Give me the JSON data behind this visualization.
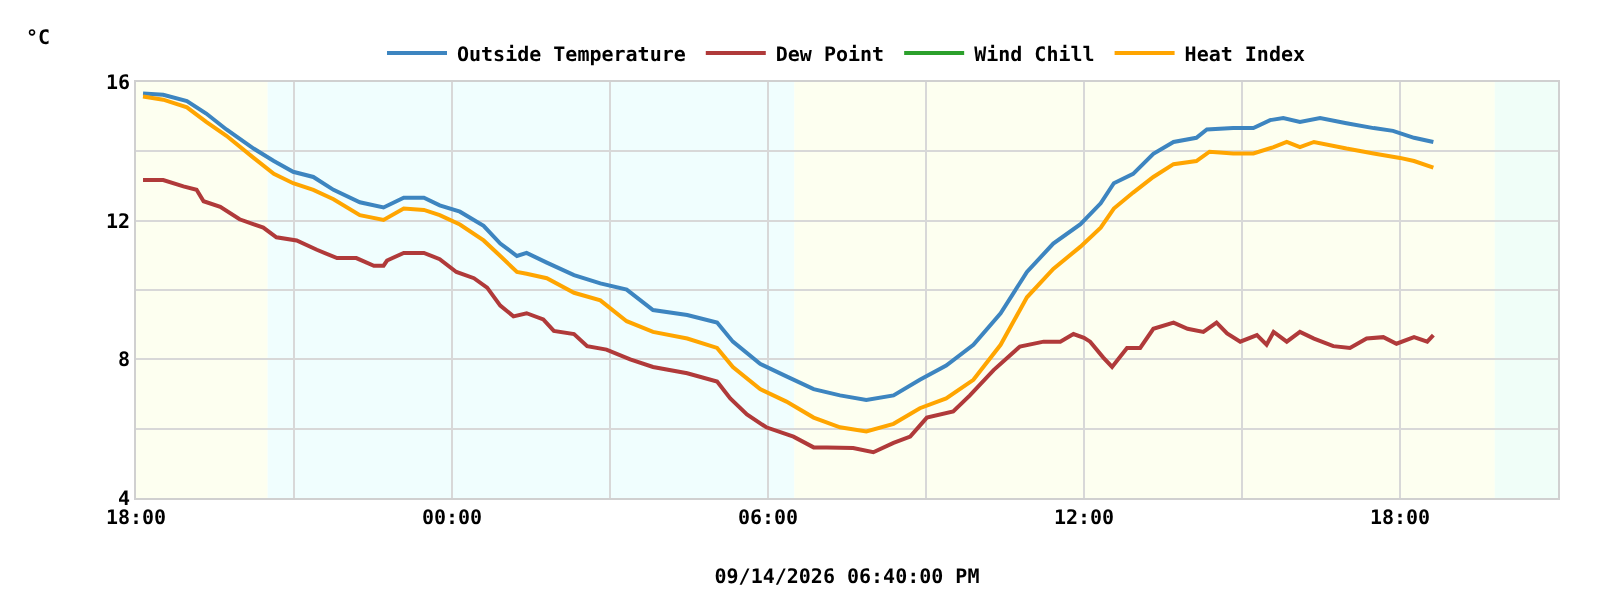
{
  "chart_data": {
    "type": "line",
    "xlabel": "09/14/2026 06:40:00 PM",
    "ylabel": "°C",
    "xlim": [
      "2026-09-13T18:00",
      "2026-09-14T21:00"
    ],
    "xticks": [
      {
        "value": "2026-09-13T18:00",
        "label": "18:00"
      },
      {
        "value": "2026-09-13T21:00",
        "label": null
      },
      {
        "value": "2026-09-14T00:00",
        "label": "00:00"
      },
      {
        "value": "2026-09-14T03:00",
        "label": null
      },
      {
        "value": "2026-09-14T06:00",
        "label": "06:00"
      },
      {
        "value": "2026-09-14T09:00",
        "label": null
      },
      {
        "value": "2026-09-14T12:00",
        "label": "12:00"
      },
      {
        "value": "2026-09-14T15:00",
        "label": null
      },
      {
        "value": "2026-09-14T18:00",
        "label": "18:00"
      }
    ],
    "ylim": [
      4,
      16
    ],
    "yticks": [
      4,
      {
        "value": 6,
        "label": null
      },
      8,
      {
        "value": 10,
        "label": null
      },
      12,
      {
        "value": 14,
        "label": null
      },
      16
    ],
    "grid": true,
    "legend": "top",
    "marker": "none",
    "line_style": "solid",
    "bands": [
      {
        "axis": "x",
        "from": "2026-09-13T18:00",
        "to": "2026-09-13T20:30",
        "color": "#fdfff0"
      },
      {
        "axis": "x",
        "from": "2026-09-13T20:30",
        "to": "2026-09-14T06:30",
        "color": "#f0fefe"
      },
      {
        "axis": "x",
        "from": "2026-09-14T06:30",
        "to": "2026-09-14T19:48",
        "color": "#fdfff0"
      },
      {
        "axis": "x",
        "from": "2026-09-14T19:48",
        "to": "2026-09-14T21:00",
        "color": "#f0fef8"
      }
    ],
    "series": [
      {
        "name": "Outside Temperature",
        "color": "#3d85c0",
        "x": [
          "2026-09-13T18:08",
          "2026-09-13T18:31",
          "2026-09-13T18:58",
          "2026-09-13T19:20",
          "2026-09-13T19:43",
          "2026-09-13T20:14",
          "2026-09-13T20:37",
          "2026-09-13T20:59",
          "2026-09-13T21:22",
          "2026-09-13T21:45",
          "2026-09-13T22:15",
          "2026-09-13T22:42",
          "2026-09-13T23:05",
          "2026-09-13T23:28",
          "2026-09-13T23:46",
          "2026-09-14T00:09",
          "2026-09-14T00:36",
          "2026-09-14T00:55",
          "2026-09-14T01:14",
          "2026-09-14T01:25",
          "2026-09-14T01:48",
          "2026-09-14T02:19",
          "2026-09-14T02:49",
          "2026-09-14T03:19",
          "2026-09-14T03:49",
          "2026-09-14T04:28",
          "2026-09-14T05:02",
          "2026-09-14T05:20",
          "2026-09-14T05:51",
          "2026-09-14T06:21",
          "2026-09-14T06:52",
          "2026-09-14T07:22",
          "2026-09-14T07:52",
          "2026-09-14T08:23",
          "2026-09-14T08:53",
          "2026-09-14T09:23",
          "2026-09-14T09:54",
          "2026-09-14T10:25",
          "2026-09-14T10:55",
          "2026-09-14T11:25",
          "2026-09-14T11:56",
          "2026-09-14T12:19",
          "2026-09-14T12:34",
          "2026-09-14T12:56",
          "2026-09-14T13:19",
          "2026-09-14T13:42",
          "2026-09-14T14:08",
          "2026-09-14T14:20",
          "2026-09-14T14:50",
          "2026-09-14T15:13",
          "2026-09-14T15:32",
          "2026-09-14T15:47",
          "2026-09-14T16:06",
          "2026-09-14T16:29",
          "2026-09-14T16:59",
          "2026-09-14T17:30",
          "2026-09-14T17:52",
          "2026-09-14T18:16",
          "2026-09-14T18:38"
        ],
        "values": [
          15.67,
          15.63,
          15.45,
          15.09,
          14.63,
          14.08,
          13.72,
          13.41,
          13.26,
          12.89,
          12.53,
          12.38,
          12.66,
          12.66,
          12.44,
          12.26,
          11.85,
          11.34,
          10.98,
          11.07,
          10.79,
          10.43,
          10.19,
          10.01,
          9.42,
          9.28,
          9.06,
          8.51,
          7.87,
          7.51,
          7.14,
          6.96,
          6.83,
          6.96,
          7.41,
          7.82,
          8.42,
          9.33,
          10.52,
          11.34,
          11.9,
          12.5,
          13.08,
          13.35,
          13.93,
          14.27,
          14.39,
          14.63,
          14.67,
          14.67,
          14.9,
          14.96,
          14.85,
          14.96,
          14.81,
          14.67,
          14.59,
          14.39,
          14.27
        ]
      },
      {
        "name": "Dew Point",
        "color": "#b03a3a",
        "x": [
          "2026-09-13T18:08",
          "2026-09-13T18:31",
          "2026-09-13T18:54",
          "2026-09-13T19:09",
          "2026-09-13T19:17",
          "2026-09-13T19:36",
          "2026-09-13T19:58",
          "2026-09-13T20:25",
          "2026-09-13T20:40",
          "2026-09-13T21:03",
          "2026-09-13T21:26",
          "2026-09-13T21:49",
          "2026-09-13T22:11",
          "2026-09-13T22:31",
          "2026-09-13T22:42",
          "2026-09-13T22:46",
          "2026-09-13T23:05",
          "2026-09-13T23:28",
          "2026-09-13T23:46",
          "2026-09-14T00:05",
          "2026-09-14T00:25",
          "2026-09-14T00:40",
          "2026-09-14T00:55",
          "2026-09-14T01:10",
          "2026-09-14T01:25",
          "2026-09-14T01:44",
          "2026-09-14T01:56",
          "2026-09-14T02:19",
          "2026-09-14T02:34",
          "2026-09-14T02:56",
          "2026-09-14T03:23",
          "2026-09-14T03:49",
          "2026-09-14T04:28",
          "2026-09-14T05:02",
          "2026-09-14T05:17",
          "2026-09-14T05:36",
          "2026-09-14T05:58",
          "2026-09-14T06:29",
          "2026-09-14T06:52",
          "2026-09-14T07:07",
          "2026-09-14T07:37",
          "2026-09-14T08:00",
          "2026-09-14T08:23",
          "2026-09-14T08:42",
          "2026-09-14T09:01",
          "2026-09-14T09:31",
          "2026-09-14T09:50",
          "2026-09-14T10:17",
          "2026-09-14T10:47",
          "2026-09-14T11:14",
          "2026-09-14T11:33",
          "2026-09-14T11:48",
          "2026-09-14T12:00",
          "2026-09-14T12:07",
          "2026-09-14T12:22",
          "2026-09-14T12:32",
          "2026-09-14T12:49",
          "2026-09-14T13:04",
          "2026-09-14T13:19",
          "2026-09-14T13:42",
          "2026-09-14T13:58",
          "2026-09-14T14:16",
          "2026-09-14T14:31",
          "2026-09-14T14:43",
          "2026-09-14T14:58",
          "2026-09-14T15:17",
          "2026-09-14T15:28",
          "2026-09-14T15:36",
          "2026-09-14T15:51",
          "2026-09-14T16:06",
          "2026-09-14T16:22",
          "2026-09-14T16:44",
          "2026-09-14T17:03",
          "2026-09-14T17:22",
          "2026-09-14T17:41",
          "2026-09-14T17:56",
          "2026-09-14T18:16",
          "2026-09-14T18:31",
          "2026-09-14T18:38"
        ],
        "values": [
          13.17,
          13.17,
          12.99,
          12.89,
          12.56,
          12.4,
          12.04,
          11.8,
          11.52,
          11.43,
          11.16,
          10.92,
          10.92,
          10.7,
          10.7,
          10.85,
          11.07,
          11.07,
          10.89,
          10.52,
          10.34,
          10.07,
          9.55,
          9.24,
          9.33,
          9.15,
          8.82,
          8.73,
          8.38,
          8.28,
          8.0,
          7.78,
          7.6,
          7.36,
          6.87,
          6.41,
          6.04,
          5.77,
          5.46,
          5.46,
          5.44,
          5.32,
          5.59,
          5.77,
          6.32,
          6.5,
          6.96,
          7.69,
          8.37,
          8.51,
          8.51,
          8.73,
          8.62,
          8.51,
          8.05,
          7.78,
          8.33,
          8.33,
          8.88,
          9.06,
          8.88,
          8.79,
          9.06,
          8.75,
          8.51,
          8.7,
          8.42,
          8.79,
          8.51,
          8.79,
          8.6,
          8.38,
          8.33,
          8.6,
          8.64,
          8.45,
          8.64,
          8.51,
          8.7
        ]
      },
      {
        "name": "Wind Chill",
        "color": "#2ca02c"
      },
      {
        "name": "Heat Index",
        "color": "#ffa500",
        "x": [
          "2026-09-13T18:08",
          "2026-09-13T18:31",
          "2026-09-13T18:58",
          "2026-09-13T19:20",
          "2026-09-13T19:43",
          "2026-09-13T20:14",
          "2026-09-13T20:37",
          "2026-09-13T20:59",
          "2026-09-13T21:22",
          "2026-09-13T21:45",
          "2026-09-13T22:15",
          "2026-09-13T22:42",
          "2026-09-13T23:05",
          "2026-09-13T23:28",
          "2026-09-13T23:46",
          "2026-09-14T00:09",
          "2026-09-14T00:36",
          "2026-09-14T00:55",
          "2026-09-14T01:14",
          "2026-09-14T01:25",
          "2026-09-14T01:48",
          "2026-09-14T02:19",
          "2026-09-14T02:49",
          "2026-09-14T03:19",
          "2026-09-14T03:49",
          "2026-09-14T04:28",
          "2026-09-14T05:02",
          "2026-09-14T05:20",
          "2026-09-14T05:51",
          "2026-09-14T06:21",
          "2026-09-14T06:52",
          "2026-09-14T07:22",
          "2026-09-14T07:52",
          "2026-09-14T08:23",
          "2026-09-14T08:53",
          "2026-09-14T09:23",
          "2026-09-14T09:54",
          "2026-09-14T10:25",
          "2026-09-14T10:55",
          "2026-09-14T11:25",
          "2026-09-14T11:56",
          "2026-09-14T12:19",
          "2026-09-14T12:34",
          "2026-09-14T12:56",
          "2026-09-14T13:19",
          "2026-09-14T13:42",
          "2026-09-14T14:08",
          "2026-09-14T14:23",
          "2026-09-14T14:50",
          "2026-09-14T15:13",
          "2026-09-14T15:36",
          "2026-09-14T15:51",
          "2026-09-14T16:06",
          "2026-09-14T16:22",
          "2026-09-14T16:59",
          "2026-09-14T17:30",
          "2026-09-14T18:00",
          "2026-09-14T18:16",
          "2026-09-14T18:38"
        ],
        "values": [
          15.58,
          15.49,
          15.27,
          14.85,
          14.45,
          13.81,
          13.35,
          13.08,
          12.89,
          12.62,
          12.16,
          12.02,
          12.35,
          12.31,
          12.16,
          11.89,
          11.43,
          10.98,
          10.52,
          10.47,
          10.34,
          9.92,
          9.7,
          9.1,
          8.79,
          8.6,
          8.33,
          7.78,
          7.14,
          6.78,
          6.32,
          6.04,
          5.92,
          6.14,
          6.59,
          6.87,
          7.41,
          8.42,
          9.79,
          10.61,
          11.25,
          11.8,
          12.35,
          12.81,
          13.26,
          13.63,
          13.72,
          13.99,
          13.94,
          13.94,
          14.12,
          14.27,
          14.12,
          14.27,
          14.08,
          13.94,
          13.81,
          13.72,
          13.53
        ]
      }
    ]
  }
}
